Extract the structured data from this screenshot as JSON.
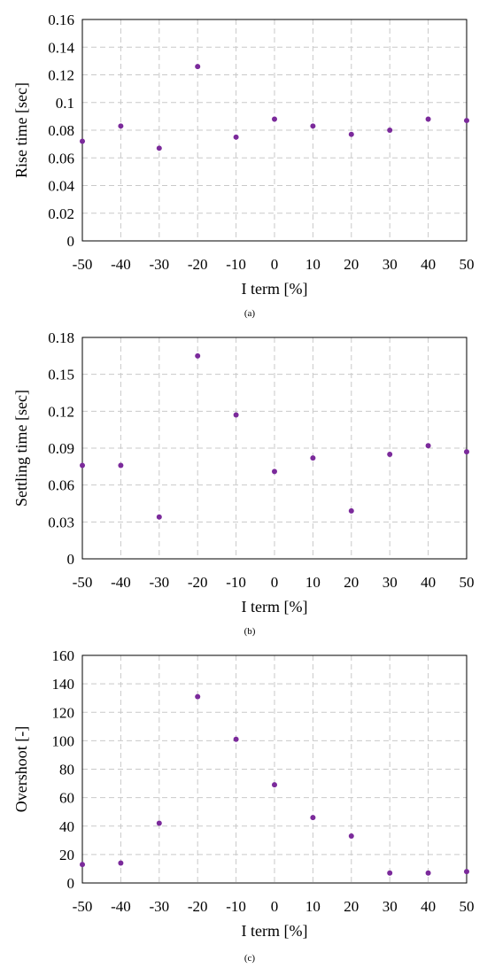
{
  "theme": {
    "marker_color": "#7b2a9b",
    "grid_color": "#c9c9c9",
    "axis_color": "#000000"
  },
  "chart_data": [
    {
      "type": "scatter",
      "caption": "(a)",
      "xlabel": "I term [%]",
      "ylabel": "Rise time [sec]",
      "xlim": [
        -50,
        50
      ],
      "ylim": [
        0,
        0.16
      ],
      "xticks": [
        "-50",
        "-40",
        "-30",
        "-20",
        "-10",
        "0",
        "10",
        "20",
        "30",
        "40",
        "50"
      ],
      "yticks": [
        "0",
        "0.02",
        "0.04",
        "0.06",
        "0.08",
        "0.1",
        "0.12",
        "0.14",
        "0.16"
      ],
      "grid": true,
      "series": [
        {
          "x": [
            -50,
            -40,
            -30,
            -20,
            -10,
            0,
            10,
            20,
            30,
            40,
            50
          ],
          "y": [
            0.072,
            0.083,
            0.067,
            0.126,
            0.075,
            0.088,
            0.083,
            0.077,
            0.08,
            0.088,
            0.087
          ]
        }
      ]
    },
    {
      "type": "scatter",
      "caption": "(b)",
      "xlabel": "I term [%]",
      "ylabel": "Settling time [sec]",
      "xlim": [
        -50,
        50
      ],
      "ylim": [
        0,
        0.18
      ],
      "xticks": [
        "-50",
        "-40",
        "-30",
        "-20",
        "-10",
        "0",
        "10",
        "20",
        "30",
        "40",
        "50"
      ],
      "yticks": [
        "0",
        "0.03",
        "0.06",
        "0.09",
        "0.12",
        "0.15",
        "0.18"
      ],
      "grid": true,
      "series": [
        {
          "x": [
            -50,
            -40,
            -30,
            -20,
            -10,
            0,
            10,
            20,
            30,
            40,
            50
          ],
          "y": [
            0.076,
            0.076,
            0.034,
            0.165,
            0.117,
            0.071,
            0.082,
            0.039,
            0.085,
            0.092,
            0.087
          ]
        }
      ]
    },
    {
      "type": "scatter",
      "caption": "(c)",
      "xlabel": "I term [%]",
      "ylabel": "Overshoot [-]",
      "xlim": [
        -50,
        50
      ],
      "ylim": [
        0,
        160
      ],
      "xticks": [
        "-50",
        "-40",
        "-30",
        "-20",
        "-10",
        "0",
        "10",
        "20",
        "30",
        "40",
        "50"
      ],
      "yticks": [
        "0",
        "20",
        "40",
        "60",
        "80",
        "100",
        "120",
        "140",
        "160"
      ],
      "grid": true,
      "series": [
        {
          "x": [
            -50,
            -40,
            -30,
            -20,
            -10,
            0,
            10,
            20,
            30,
            40,
            50
          ],
          "y": [
            13,
            14,
            42,
            131,
            101,
            69,
            46,
            33,
            7,
            7,
            8
          ]
        }
      ]
    }
  ]
}
